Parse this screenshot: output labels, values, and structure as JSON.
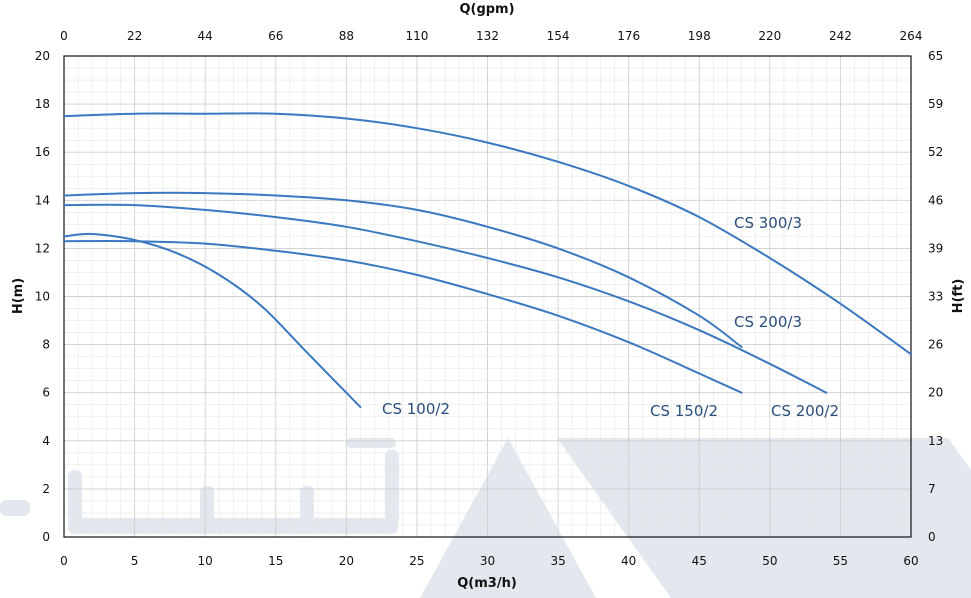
{
  "chart_data": {
    "type": "line",
    "xlabel": "Q(m3/h)",
    "x2label": "Q(gpm)",
    "ylabel": "H(m)",
    "y2label": "H(ft)",
    "xlim": [
      0,
      60
    ],
    "ylim": [
      0,
      20
    ],
    "x_ticks": [
      "0",
      "5",
      "10",
      "15",
      "20",
      "25",
      "30",
      "35",
      "40",
      "45",
      "50",
      "55",
      "60"
    ],
    "y_ticks": [
      "0",
      "2",
      "4",
      "6",
      "8",
      "10",
      "12",
      "14",
      "16",
      "18",
      "20"
    ],
    "x2_ticks": [
      "0",
      "22",
      "44",
      "66",
      "88",
      "110",
      "132",
      "154",
      "176",
      "198",
      "220",
      "242",
      "264"
    ],
    "y2_ticks": [
      "0",
      "7",
      "13",
      "20",
      "26",
      "33",
      "39",
      "46",
      "52",
      "59",
      "65"
    ],
    "grid": true,
    "series": [
      {
        "name": "CS 100/2",
        "x": [
          0,
          2,
          5,
          8,
          11,
          14,
          17,
          19,
          21
        ],
        "y": [
          12.5,
          12.6,
          12.35,
          11.8,
          10.9,
          9.6,
          7.8,
          6.6,
          5.4
        ]
      },
      {
        "name": "CS 150/2",
        "x": [
          0,
          5,
          10,
          15,
          20,
          25,
          30,
          35,
          40,
          45,
          48
        ],
        "y": [
          12.3,
          12.3,
          12.2,
          11.9,
          11.5,
          10.9,
          10.1,
          9.2,
          8.1,
          6.8,
          6.0
        ]
      },
      {
        "name": "CS 200/2",
        "x": [
          0,
          5,
          10,
          15,
          20,
          25,
          30,
          35,
          40,
          45,
          50,
          54
        ],
        "y": [
          13.8,
          13.8,
          13.6,
          13.3,
          12.9,
          12.3,
          11.6,
          10.8,
          9.8,
          8.6,
          7.2,
          6.0
        ]
      },
      {
        "name": "CS 200/3",
        "x": [
          0,
          5,
          10,
          15,
          20,
          25,
          30,
          35,
          40,
          45,
          48
        ],
        "y": [
          14.2,
          14.3,
          14.3,
          14.2,
          14.0,
          13.6,
          12.9,
          12.0,
          10.8,
          9.2,
          7.9
        ]
      },
      {
        "name": "CS 300/3",
        "x": [
          0,
          5,
          10,
          15,
          20,
          25,
          30,
          35,
          40,
          45,
          50,
          55,
          60
        ],
        "y": [
          17.5,
          17.6,
          17.6,
          17.6,
          17.4,
          17.0,
          16.4,
          15.6,
          14.6,
          13.3,
          11.6,
          9.7,
          7.6
        ]
      }
    ],
    "annotations": [
      "CS 100/2",
      "CS 150/2",
      "CS 200/2",
      "CS 200/3",
      "CS 300/3"
    ],
    "colors": {
      "curve": "#3a78c0",
      "label": "#2a4d7a",
      "watermark": "#e3e8ee"
    }
  }
}
